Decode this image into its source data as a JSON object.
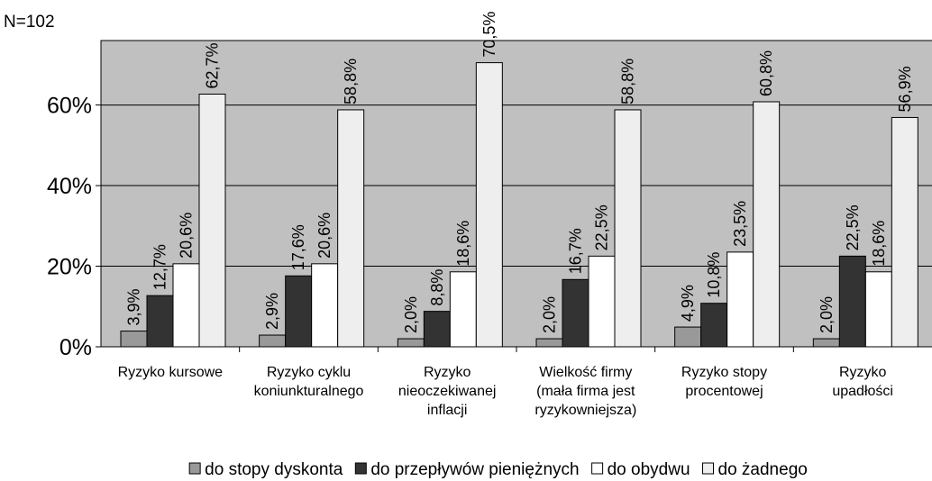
{
  "chart_data": {
    "type": "bar",
    "subtitle": "N=102",
    "categories": [
      [
        "Ryzyko kursowe"
      ],
      [
        "Ryzyko cyklu",
        "koniunkturalnego"
      ],
      [
        "Ryzyko",
        "nieoczekiwanej",
        "inflacji"
      ],
      [
        "Wielkość  firmy",
        "(mała firma jest",
        "ryzykowniejsza)"
      ],
      [
        "Ryzyko stopy",
        "procentowej"
      ],
      [
        "Ryzyko",
        "upadłości"
      ]
    ],
    "series": [
      {
        "name": "do stopy dyskonta",
        "color": "#999999",
        "values": [
          3.9,
          2.9,
          2.0,
          2.0,
          4.9,
          2.0
        ],
        "value_labels": [
          "3,9%",
          "2,9%",
          "2,0%",
          "2,0%",
          "4,9%",
          "2,0%"
        ]
      },
      {
        "name": "do przepływów pieniężnych",
        "color": "#333333",
        "values": [
          12.7,
          17.6,
          8.8,
          16.7,
          10.8,
          22.5
        ],
        "value_labels": [
          "12,7%",
          "17,6%",
          "8,8%",
          "16,7%",
          "10,8%",
          "22,5%"
        ]
      },
      {
        "name": "do obydwu",
        "color": "#ffffff",
        "values": [
          20.6,
          20.6,
          18.6,
          22.5,
          23.5,
          18.6
        ],
        "value_labels": [
          "20,6%",
          "20,6%",
          "18,6%",
          "22,5%",
          "23,5%",
          "18,6%"
        ]
      },
      {
        "name": "do żadnego",
        "color": "#eeeeee",
        "values": [
          62.7,
          58.8,
          70.5,
          58.8,
          60.8,
          56.9
        ],
        "value_labels": [
          "62,7%",
          "58,8%",
          "70,5%",
          "58,8%",
          "60,8%",
          "56,9%"
        ]
      }
    ],
    "ylim": [
      0,
      76
    ],
    "yticks": [
      {
        "value": 0,
        "label": "0%"
      },
      {
        "value": 20,
        "label": "20%"
      },
      {
        "value": 40,
        "label": "40%"
      },
      {
        "value": 60,
        "label": "60%"
      }
    ],
    "grid": true,
    "plot_background": "#c0c0c0",
    "legend": "bottom"
  }
}
